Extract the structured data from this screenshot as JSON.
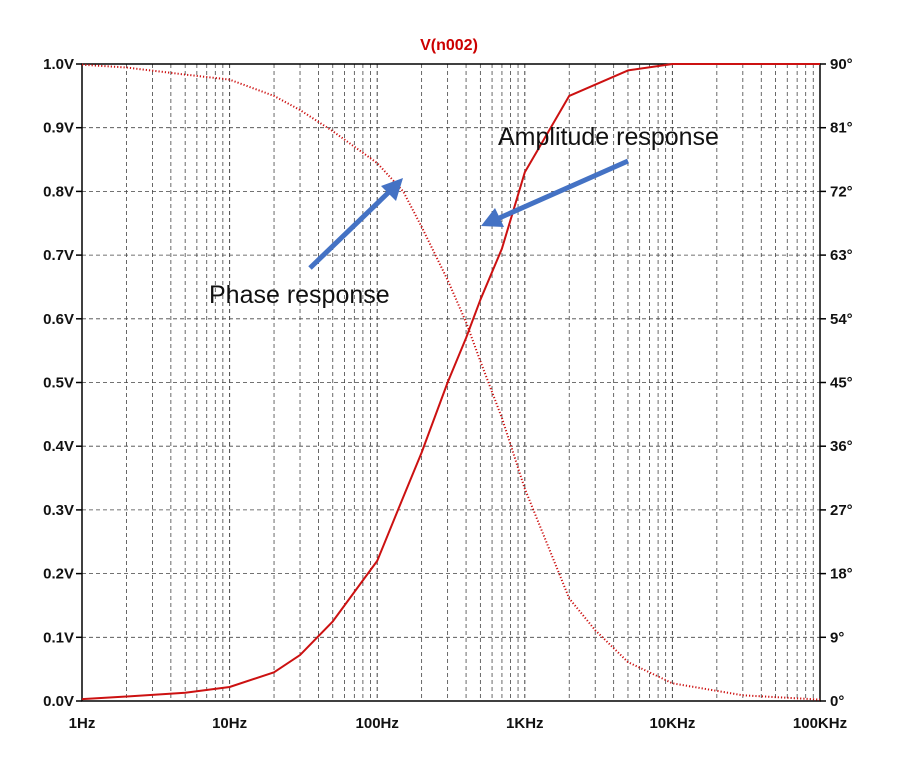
{
  "chart_data": {
    "type": "line",
    "title": "V(n002)",
    "x_scale": "log",
    "xlim": [
      1,
      100000
    ],
    "x_ticks": [
      1,
      10,
      100,
      1000,
      10000,
      100000
    ],
    "x_tick_labels": [
      "1Hz",
      "10Hz",
      "100Hz",
      "1KHz",
      "10KHz",
      "100KHz"
    ],
    "ylim_left": [
      0.0,
      1.0
    ],
    "y_tick_labels_left": [
      "0.0V",
      "0.1V",
      "0.2V",
      "0.3V",
      "0.4V",
      "0.5V",
      "0.6V",
      "0.7V",
      "0.8V",
      "0.9V",
      "1.0V"
    ],
    "ylim_right": [
      0,
      90
    ],
    "y_tick_labels_right": [
      "0°",
      "9°",
      "18°",
      "27°",
      "36°",
      "45°",
      "54°",
      "63°",
      "72°",
      "81°",
      "90°"
    ],
    "grid": true,
    "series": [
      {
        "id": "amplitude",
        "axis": "left",
        "style": "solid",
        "x": [
          1,
          2,
          5,
          10,
          20,
          30,
          50,
          100,
          150,
          200,
          300,
          400,
          500,
          700,
          1000,
          2000,
          5000,
          10000,
          100000
        ],
        "y": [
          0.003,
          0.007,
          0.013,
          0.022,
          0.045,
          0.072,
          0.125,
          0.22,
          0.32,
          0.39,
          0.5,
          0.57,
          0.63,
          0.71,
          0.83,
          0.95,
          0.99,
          1.0,
          1.0
        ]
      },
      {
        "id": "phase",
        "axis": "right",
        "style": "dotted",
        "x": [
          1,
          2,
          5,
          10,
          20,
          30,
          50,
          100,
          150,
          200,
          300,
          400,
          500,
          700,
          1000,
          2000,
          3000,
          5000,
          10000,
          30000,
          100000
        ],
        "y": [
          89.9,
          89.5,
          88.5,
          87.8,
          85.5,
          83.5,
          80.5,
          76.0,
          72.0,
          67.0,
          59.5,
          53.5,
          48.0,
          40.0,
          30.0,
          14.5,
          10.0,
          5.5,
          2.5,
          0.8,
          0.2
        ]
      }
    ],
    "annotations": [
      "Amplitude response",
      "Phase response"
    ],
    "colors": {
      "curve": "#cc1111",
      "grid": "#444444",
      "arrow": "#4472c4",
      "title": "#cc0000"
    }
  }
}
